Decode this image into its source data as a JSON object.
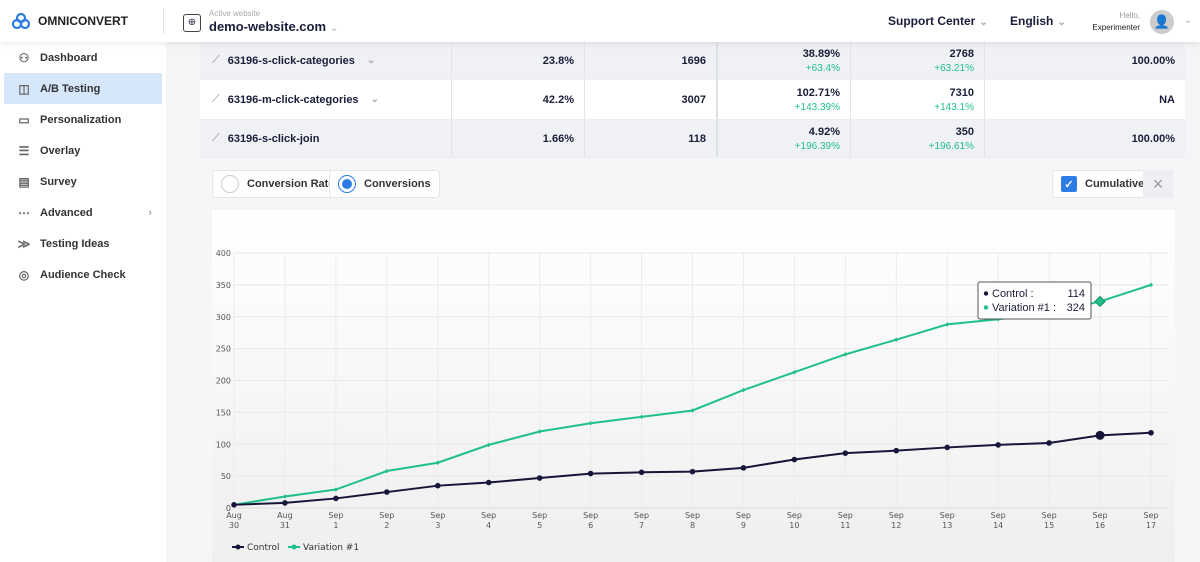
{
  "brand": "OMNICONVERT",
  "header": {
    "site_label": "Active website",
    "site": "demo-website.com",
    "support": "Support Center",
    "language": "English",
    "hello": "Hello,",
    "user": "Experimenter"
  },
  "sidebar": {
    "items": [
      {
        "label": "Dashboard",
        "icon": "dashboard-icon"
      },
      {
        "label": "A/B Testing",
        "icon": "ab-icon",
        "active": true
      },
      {
        "label": "Personalization",
        "icon": "personalization-icon"
      },
      {
        "label": "Overlay",
        "icon": "overlay-icon"
      },
      {
        "label": "Survey",
        "icon": "survey-icon"
      },
      {
        "label": "Advanced",
        "icon": "more-icon"
      },
      {
        "label": "Testing Ideas",
        "icon": "ideas-icon"
      },
      {
        "label": "Audience Check",
        "icon": "audience-icon"
      }
    ]
  },
  "table": {
    "rows": [
      {
        "name": "63196-s-click-categories",
        "rate": "23.8%",
        "count": "1696",
        "v_rate": "38.89%",
        "v_rate_delta": "+63.4%",
        "v_count": "2768",
        "v_count_delta": "+63.21%",
        "chance": "100.00%",
        "dropdown": true
      },
      {
        "name": "63196-m-click-categories",
        "rate": "42.2%",
        "count": "3007",
        "v_rate": "102.71%",
        "v_rate_delta": "+143.39%",
        "v_count": "7310",
        "v_count_delta": "+143.1%",
        "chance": "NA",
        "dropdown": true
      },
      {
        "name": "63196-s-click-join",
        "rate": "1.66%",
        "count": "118",
        "v_rate": "4.92%",
        "v_rate_delta": "+196.39%",
        "v_count": "350",
        "v_count_delta": "+196.61%",
        "chance": "100.00%",
        "dropdown": false
      }
    ]
  },
  "controls": {
    "conversion_rate": "Conversion Rate",
    "conversions": "Conversions",
    "selected": "Conversions",
    "cumulative": "Cumulative",
    "cumulative_checked": true
  },
  "colors": {
    "control": "#16163a",
    "variation": "#21c08b",
    "accent": "#2d7be5"
  },
  "chart_data": {
    "type": "line",
    "ylim": [
      0,
      400
    ],
    "yticks": [
      "0",
      "50",
      "100",
      "150",
      "200",
      "250",
      "300",
      "350",
      "400"
    ],
    "categories": [
      [
        "Aug",
        "30"
      ],
      [
        "Aug",
        "31"
      ],
      [
        "Sep",
        "1"
      ],
      [
        "Sep",
        "2"
      ],
      [
        "Sep",
        "3"
      ],
      [
        "Sep",
        "4"
      ],
      [
        "Sep",
        "5"
      ],
      [
        "Sep",
        "6"
      ],
      [
        "Sep",
        "7"
      ],
      [
        "Sep",
        "8"
      ],
      [
        "Sep",
        "9"
      ],
      [
        "Sep",
        "10"
      ],
      [
        "Sep",
        "11"
      ],
      [
        "Sep",
        "12"
      ],
      [
        "Sep",
        "13"
      ],
      [
        "Sep",
        "14"
      ],
      [
        "Sep",
        "15"
      ],
      [
        "Sep",
        "16"
      ],
      [
        "Sep",
        "17"
      ]
    ],
    "series": [
      {
        "name": "Control",
        "values": [
          5,
          8,
          15,
          25,
          35,
          40,
          47,
          54,
          56,
          57,
          63,
          76,
          86,
          90,
          95,
          99,
          102,
          114,
          118
        ]
      },
      {
        "name": "Variation #1",
        "values": [
          5,
          18,
          29,
          58,
          71,
          99,
          120,
          133,
          143,
          153,
          185,
          213,
          241,
          264,
          288,
          296,
          305,
          324,
          350
        ]
      }
    ],
    "legend": "bottom-left",
    "grid": true,
    "tooltip": {
      "category": "Sep 16",
      "rows": [
        {
          "label": "Control :",
          "value": "114"
        },
        {
          "label": "Variation #1 :",
          "value": "324"
        }
      ]
    }
  }
}
